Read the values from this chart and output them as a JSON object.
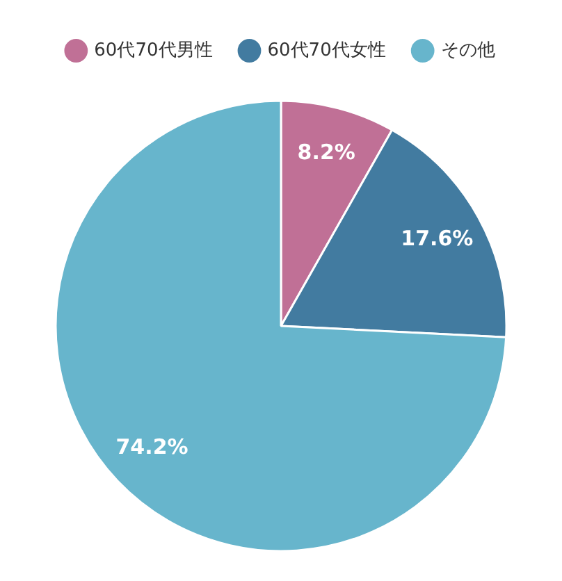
{
  "chart_data": {
    "type": "pie",
    "categories": [
      "60代70代男性",
      "60代70代女性",
      "その他"
    ],
    "values": [
      8.2,
      17.6,
      74.2
    ],
    "colors": [
      "#c07096",
      "#427ba0",
      "#67b5cc"
    ],
    "value_labels": [
      "8.2%",
      "17.6%",
      "74.2%"
    ],
    "legend": "top"
  }
}
